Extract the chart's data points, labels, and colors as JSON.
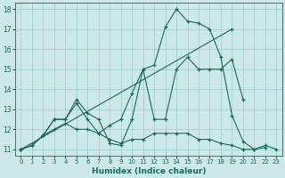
{
  "xlabel": "Humidex (Indice chaleur)",
  "bg_color": "#cce8e8",
  "grid_color": "#99cccc",
  "line_color": "#1a6b5a",
  "xlim_min": -0.5,
  "xlim_max": 23.5,
  "ylim_min": 10.7,
  "ylim_max": 18.3,
  "yticks": [
    11,
    12,
    13,
    14,
    15,
    16,
    17,
    18
  ],
  "xticks": [
    0,
    1,
    2,
    3,
    4,
    5,
    6,
    7,
    8,
    9,
    10,
    11,
    12,
    13,
    14,
    15,
    16,
    17,
    18,
    19,
    20,
    21,
    22,
    23
  ],
  "series": [
    {
      "x": [
        0,
        1,
        2,
        3,
        4,
        5,
        6,
        7,
        8,
        9,
        10,
        11,
        12,
        13,
        14,
        15,
        16,
        17,
        18,
        19,
        20,
        21,
        22,
        23
      ],
      "y": [
        11,
        11.2,
        11.7,
        12.0,
        12.3,
        12.0,
        12.0,
        11.8,
        11.5,
        11.3,
        11.5,
        11.5,
        11.8,
        11.8,
        11.8,
        11.8,
        11.5,
        11.5,
        11.3,
        11.2,
        11.0,
        11.0,
        11.2,
        11.0
      ]
    },
    {
      "x": [
        0,
        1,
        2,
        3,
        4,
        5,
        6,
        7,
        8,
        9,
        10,
        11,
        12,
        13,
        14,
        15,
        16,
        17,
        18,
        19,
        20,
        21,
        22
      ],
      "y": [
        11,
        11.2,
        11.7,
        12.5,
        12.5,
        13.5,
        12.8,
        12.5,
        11.3,
        11.2,
        12.5,
        15.0,
        15.2,
        17.1,
        18.0,
        17.4,
        17.3,
        17.0,
        15.6,
        12.7,
        11.4,
        11.0,
        11.1
      ]
    },
    {
      "x": [
        0,
        1,
        2,
        3,
        4,
        5,
        6,
        7,
        8,
        9,
        10,
        11,
        12,
        13,
        14,
        15,
        16,
        17,
        18,
        19,
        20
      ],
      "y": [
        11,
        11.2,
        11.7,
        12.5,
        12.5,
        13.3,
        12.5,
        11.8,
        12.2,
        12.5,
        13.8,
        15.0,
        12.5,
        12.5,
        15.0,
        15.6,
        15.0,
        15.0,
        15.0,
        15.5,
        13.5
      ]
    },
    {
      "x": [
        0,
        19
      ],
      "y": [
        11,
        17.0
      ]
    }
  ]
}
